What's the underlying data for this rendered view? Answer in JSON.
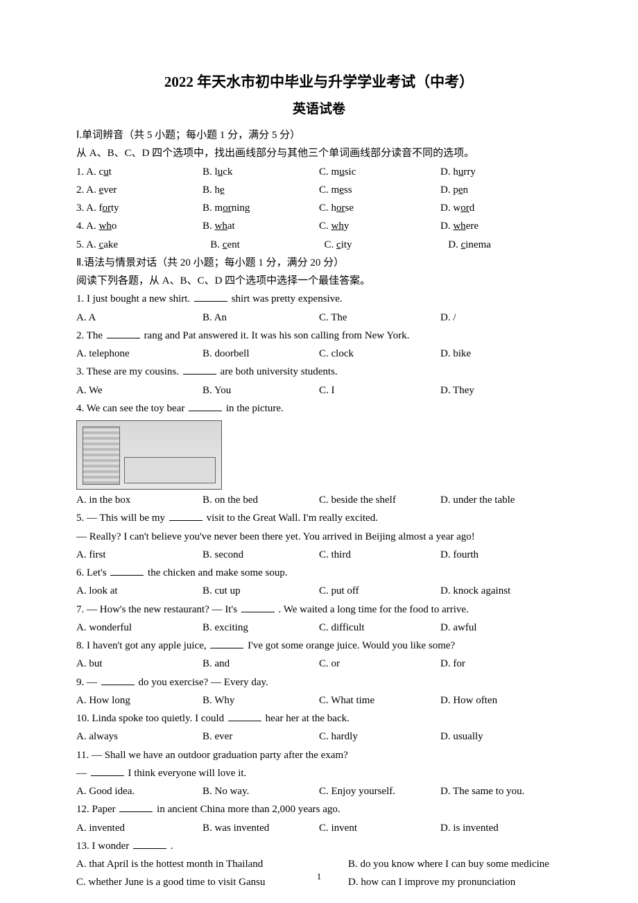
{
  "title_main": "2022 年天水市初中毕业与升学学业考试（中考）",
  "title_sub": "英语试卷",
  "section1": {
    "header": "Ⅰ.单词辨音（共 5 小题；每小题 1 分，满分 5 分）",
    "instruction": "从 A、B、C、D 四个选项中，找出画线部分与其他三个单词画线部分读音不同的选项。",
    "rows": [
      {
        "n": "1",
        "a_pre": "c",
        "a_u": "u",
        "a_post": "t",
        "b_pre": "l",
        "b_u": "u",
        "b_post": "ck",
        "c_pre": "m",
        "c_u": "u",
        "c_post": "sic",
        "d_pre": "h",
        "d_u": "u",
        "d_post": "rry"
      },
      {
        "n": "2",
        "a_pre": "",
        "a_u": "e",
        "a_post": "ver",
        "b_pre": "h",
        "b_u": "e",
        "b_post": "",
        "c_pre": "m",
        "c_u": "e",
        "c_post": "ss",
        "d_pre": "p",
        "d_u": "e",
        "d_post": "n"
      },
      {
        "n": "3",
        "a_pre": "f",
        "a_u": "or",
        "a_post": "ty",
        "b_pre": "m",
        "b_u": "or",
        "b_post": "ning",
        "c_pre": "h",
        "c_u": "or",
        "c_post": "se",
        "d_pre": "w",
        "d_u": "or",
        "d_post": "d"
      },
      {
        "n": "4",
        "a_pre": "",
        "a_u": "wh",
        "a_post": "o",
        "b_pre": "",
        "b_u": "wh",
        "b_post": "at",
        "c_pre": "",
        "c_u": "wh",
        "c_post": "y",
        "d_pre": "",
        "d_u": "wh",
        "d_post": "ere"
      },
      {
        "n": "5",
        "a_pre": "",
        "a_u": "c",
        "a_post": "ake",
        "b_pre": "",
        "b_u": "c",
        "b_post": "ent",
        "c_pre": "",
        "c_u": "c",
        "c_post": "ity",
        "d_pre": "",
        "d_u": "c",
        "d_post": "inema"
      }
    ]
  },
  "section2": {
    "header": "Ⅱ.语法与情景对话（共 20 小题；每小题 1 分，满分 20 分）",
    "instruction": "阅读下列各题，从 A、B、C、D 四个选项中选择一个最佳答案。"
  },
  "q1": {
    "stem_pre": "1. I just bought a new shirt. ",
    "stem_post": " shirt was pretty expensive.",
    "a": "A. A",
    "b": "B. An",
    "c": "C. The",
    "d": "D. /"
  },
  "q2": {
    "stem_pre": "2. The ",
    "stem_post": " rang and Pat answered it. It was his son calling from New York.",
    "a": "A. telephone",
    "b": "B. doorbell",
    "c": "C. clock",
    "d": "D. bike"
  },
  "q3": {
    "stem_pre": "3. These are my cousins. ",
    "stem_post": " are both university students.",
    "a": "A. We",
    "b": "B. You",
    "c": "C. I",
    "d": "D. They"
  },
  "q4": {
    "stem_pre": "4. We can see the toy bear ",
    "stem_post": " in the picture.",
    "a": "A. in the box",
    "b": "B. on the bed",
    "c": "C. beside the shelf",
    "d": "D. under the table"
  },
  "q5": {
    "line1_pre": "5. — This will be my ",
    "line1_post": " visit to the Great Wall. I'm really excited.",
    "line2": "— Really? I can't believe you've never been there yet. You arrived in Beijing almost a year ago!",
    "a": "A. first",
    "b": "B. second",
    "c": "C. third",
    "d": "D. fourth"
  },
  "q6": {
    "stem_pre": "6. Let's ",
    "stem_post": " the chicken and make some soup.",
    "a": "A. look at",
    "b": "B. cut up",
    "c": "C. put off",
    "d": "D. knock against"
  },
  "q7": {
    "stem_pre": "7. — How's the new restaurant? — It's ",
    "stem_post": " . We waited a long time for the food to arrive.",
    "a": "A. wonderful",
    "b": "B. exciting",
    "c": "C. difficult",
    "d": "D. awful"
  },
  "q8": {
    "stem_pre": "8. I haven't got any apple juice, ",
    "stem_post": " I've got some orange juice. Would you like some?",
    "a": "A. but",
    "b": "B. and",
    "c": "C. or",
    "d": "D. for"
  },
  "q9": {
    "stem_pre": "9. — ",
    "stem_post": " do you exercise? — Every day.",
    "a": "A. How long",
    "b": "B. Why",
    "c": "C. What time",
    "d": "D. How often"
  },
  "q10": {
    "stem_pre": "10. Linda spoke too quietly. I could ",
    "stem_post": " hear her at the back.",
    "a": "A. always",
    "b": "B. ever",
    "c": "C. hardly",
    "d": "D. usually"
  },
  "q11": {
    "line1": "11. — Shall we have an outdoor graduation party after the exam?",
    "line2_pre": "— ",
    "line2_post": " I think everyone will love it.",
    "a": "A. Good idea.",
    "b": "B. No way.",
    "c": "C. Enjoy yourself.",
    "d": "D. The same to you."
  },
  "q12": {
    "stem_pre": "12. Paper ",
    "stem_post": " in ancient China more than 2,000 years ago.",
    "a": "A. invented",
    "b": "B. was invented",
    "c": "C. invent",
    "d": "D. is invented"
  },
  "q13": {
    "stem_pre": "13. I wonder ",
    "stem_post": " .",
    "a": "A. that April is the hottest month in Thailand",
    "b": "B. do you know where I can buy some medicine",
    "c": "C. whether June is a good time to visit Gansu",
    "d": "D. how can I improve my pronunciation"
  },
  "page_number": "1"
}
